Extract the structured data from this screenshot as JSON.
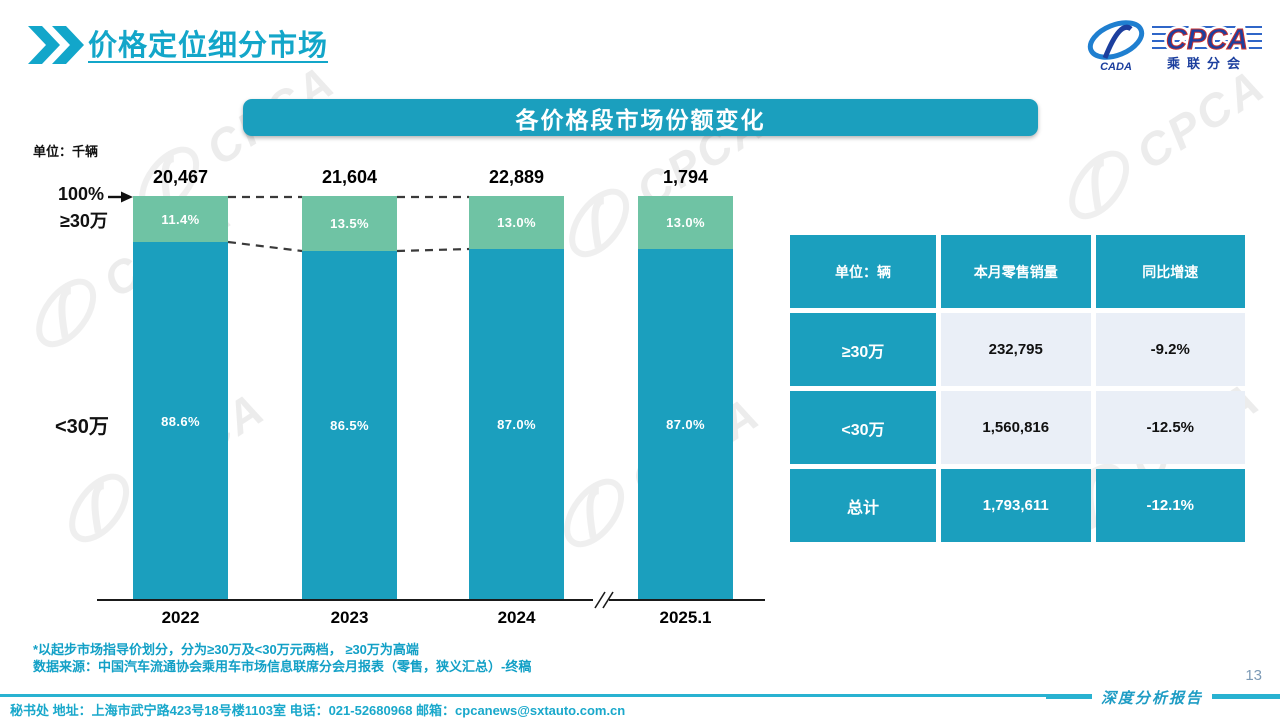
{
  "page": {
    "title": "价格定位细分市场",
    "page_number": "13",
    "report_label": "深度分析报告"
  },
  "logo": {
    "main": "CPCA",
    "sub": "乘联分会",
    "emblem": "CADA"
  },
  "watermark": {
    "text": "CPCA"
  },
  "banner": {
    "title": "各价格段市场份额变化"
  },
  "chart_labels": {
    "unit": "单位：千辆",
    "pct_100": "100%",
    "high_label": "≥30万",
    "low_label": "<30万"
  },
  "chart_data": {
    "type": "bar",
    "stacked": true,
    "title": "各价格段市场份额变化",
    "unit": "千辆",
    "categories": [
      "2022",
      "2023",
      "2024",
      "2025.1"
    ],
    "totals": [
      "20,467",
      "21,604",
      "22,889",
      "1,794"
    ],
    "series": [
      {
        "name": "≥30万",
        "color": "#6FC3A4",
        "values_pct": [
          11.4,
          13.5,
          13.0,
          13.0
        ],
        "labels": [
          "11.4%",
          "13.5%",
          "13.0%",
          "13.0%"
        ]
      },
      {
        "name": "<30万",
        "color": "#1B9FBE",
        "values_pct": [
          88.6,
          86.5,
          87.0,
          87.0
        ],
        "labels": [
          "88.6%",
          "86.5%",
          "87.0%",
          "87.0%"
        ]
      }
    ],
    "ylim": [
      0,
      100
    ],
    "grid": false,
    "legend_position": "left-of-bars",
    "axis_break_between": [
      "2024",
      "2025.1"
    ]
  },
  "table": {
    "headers": [
      "单位：辆",
      "本月零售销量",
      "同比增速"
    ],
    "rows": [
      {
        "label": "≥30万",
        "sales": "232,795",
        "yoy": "-9.2%",
        "highlight": false
      },
      {
        "label": "<30万",
        "sales": "1,560,816",
        "yoy": "-12.5%",
        "highlight": false
      },
      {
        "label": "总计",
        "sales": "1,793,611",
        "yoy": "-12.1%",
        "highlight": true
      }
    ]
  },
  "footnotes": {
    "line1": "*以起步市场指导价划分，分为≥30万及<30万元两档， ≥30万为高端",
    "line2": "数据来源：中国汽车流通协会乘用车市场信息联席分会月报表（零售，狭义汇总）-终稿"
  },
  "footer": {
    "text": "秘书处  地址：上海市武宁路423号18号楼1103室  电话：021-52680968   邮箱：cpcanews@sxtauto.com.cn"
  },
  "colors": {
    "accent_teal": "#1B9FBE",
    "segment_green": "#6FC3A4",
    "title_teal": "#13A6C9",
    "table_light_cell": "#EAEFF7",
    "divider_teal": "#29B2D1",
    "page_number_gray": "#7C9AB6",
    "logo_blue": "#1C3F9E",
    "logo_red": "#C9302F"
  }
}
